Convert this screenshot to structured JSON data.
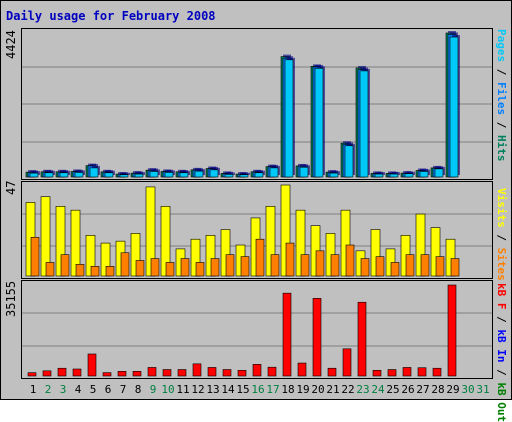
{
  "title": "Daily usage for February 2008",
  "colors": {
    "pages": "#00c8f8",
    "files": "#0080ff",
    "hits": "#00805c",
    "visits": "#ffff00",
    "sites": "#ff8000",
    "kbin": "#0000ff",
    "kbout": "#008000",
    "kbf": "#ff0000",
    "weekday": "#000000",
    "weekend": "#008040",
    "background": "#c0c0c0",
    "grid": "#808080"
  },
  "legends": {
    "hits_panel": [
      {
        "text": "Pages",
        "color": "#00c8f8"
      },
      {
        "text": " / ",
        "color": "#000000"
      },
      {
        "text": "Files",
        "color": "#0080ff"
      },
      {
        "text": " / ",
        "color": "#000000"
      },
      {
        "text": "Hits",
        "color": "#00805c"
      }
    ],
    "visits_panel": [
      {
        "text": "Visits",
        "color": "#ffff00"
      },
      {
        "text": " / ",
        "color": "#000000"
      },
      {
        "text": "Sites",
        "color": "#ff8000"
      }
    ],
    "kb_panel": [
      {
        "text": "kB F",
        "color": "#ff0000"
      },
      {
        "text": " / ",
        "color": "#000000"
      },
      {
        "text": "kB In",
        "color": "#0000ff"
      },
      {
        "text": " / ",
        "color": "#000000"
      },
      {
        "text": "kB Out",
        "color": "#008000"
      }
    ]
  },
  "chart_data": [
    {
      "type": "bar",
      "panel": "hits",
      "ymax_label": "4424",
      "ylim": [
        0,
        4424
      ],
      "grid": true,
      "categories": [
        "1",
        "2",
        "3",
        "4",
        "5",
        "6",
        "7",
        "8",
        "9",
        "10",
        "11",
        "12",
        "13",
        "14",
        "15",
        "16",
        "17",
        "18",
        "19",
        "20",
        "21",
        "22",
        "23",
        "24",
        "25",
        "26",
        "27",
        "28",
        "29",
        "30",
        "31"
      ],
      "series": [
        {
          "name": "Hits",
          "values": [
            150,
            160,
            160,
            170,
            350,
            160,
            90,
            120,
            210,
            170,
            160,
            220,
            260,
            110,
            90,
            160,
            320,
            3700,
            340,
            3400,
            150,
            1040,
            3350,
            110,
            110,
            120,
            200,
            280,
            4424,
            0,
            0
          ]
        },
        {
          "name": "Files",
          "values": [
            140,
            150,
            150,
            160,
            340,
            150,
            85,
            110,
            200,
            160,
            150,
            210,
            250,
            100,
            85,
            150,
            310,
            3650,
            330,
            3380,
            140,
            1000,
            3300,
            100,
            100,
            110,
            190,
            270,
            4380,
            0,
            0
          ]
        },
        {
          "name": "Pages",
          "values": [
            120,
            130,
            130,
            140,
            280,
            130,
            70,
            90,
            170,
            140,
            130,
            180,
            220,
            80,
            70,
            130,
            280,
            3600,
            300,
            3340,
            120,
            960,
            3260,
            90,
            90,
            100,
            170,
            250,
            4300,
            0,
            0
          ]
        }
      ]
    },
    {
      "type": "bar",
      "panel": "visits",
      "ymax_label": "47",
      "ylim": [
        0,
        47
      ],
      "grid": true,
      "categories": [
        "1",
        "2",
        "3",
        "4",
        "5",
        "6",
        "7",
        "8",
        "9",
        "10",
        "11",
        "12",
        "13",
        "14",
        "15",
        "16",
        "17",
        "18",
        "19",
        "20",
        "21",
        "22",
        "23",
        "24",
        "25",
        "26",
        "27",
        "28",
        "29",
        "30",
        "31"
      ],
      "series": [
        {
          "name": "Visits",
          "values": [
            38,
            41,
            36,
            34,
            21,
            17,
            18,
            22,
            46,
            36,
            14,
            19,
            21,
            24,
            16,
            30,
            36,
            47,
            34,
            26,
            22,
            34,
            13,
            24,
            14,
            21,
            32,
            25,
            19,
            0,
            0
          ]
        },
        {
          "name": "Sites",
          "values": [
            20,
            7,
            11,
            6,
            5,
            5,
            12,
            8,
            9,
            7,
            9,
            7,
            9,
            11,
            10,
            19,
            11,
            17,
            11,
            13,
            11,
            16,
            9,
            10,
            7,
            11,
            11,
            10,
            9,
            0,
            0
          ]
        }
      ]
    },
    {
      "type": "bar",
      "panel": "kbytes",
      "ymax_label": "35155",
      "ylim": [
        0,
        35155
      ],
      "grid": true,
      "categories": [
        "1",
        "2",
        "3",
        "4",
        "5",
        "6",
        "7",
        "8",
        "9",
        "10",
        "11",
        "12",
        "13",
        "14",
        "15",
        "16",
        "17",
        "18",
        "19",
        "20",
        "21",
        "22",
        "23",
        "24",
        "25",
        "26",
        "27",
        "28",
        "29",
        "30",
        "31"
      ],
      "series": [
        {
          "name": "kB F",
          "values": [
            1300,
            2000,
            3000,
            2700,
            8500,
            1300,
            1800,
            1800,
            3300,
            2500,
            2500,
            4700,
            3300,
            2500,
            2200,
            4500,
            3400,
            32000,
            5000,
            30000,
            3000,
            10500,
            28500,
            2200,
            2500,
            3300,
            3200,
            3000,
            35155,
            0,
            0
          ]
        }
      ]
    }
  ],
  "days": [
    {
      "label": "1",
      "weekend": false
    },
    {
      "label": "2",
      "weekend": true
    },
    {
      "label": "3",
      "weekend": true
    },
    {
      "label": "4",
      "weekend": false
    },
    {
      "label": "5",
      "weekend": false
    },
    {
      "label": "6",
      "weekend": false
    },
    {
      "label": "7",
      "weekend": false
    },
    {
      "label": "8",
      "weekend": false
    },
    {
      "label": "9",
      "weekend": true
    },
    {
      "label": "10",
      "weekend": true
    },
    {
      "label": "11",
      "weekend": false
    },
    {
      "label": "12",
      "weekend": false
    },
    {
      "label": "13",
      "weekend": false
    },
    {
      "label": "14",
      "weekend": false
    },
    {
      "label": "15",
      "weekend": false
    },
    {
      "label": "16",
      "weekend": true
    },
    {
      "label": "17",
      "weekend": true
    },
    {
      "label": "18",
      "weekend": false
    },
    {
      "label": "19",
      "weekend": false
    },
    {
      "label": "20",
      "weekend": false
    },
    {
      "label": "21",
      "weekend": false
    },
    {
      "label": "22",
      "weekend": false
    },
    {
      "label": "23",
      "weekend": true
    },
    {
      "label": "24",
      "weekend": true
    },
    {
      "label": "25",
      "weekend": false
    },
    {
      "label": "26",
      "weekend": false
    },
    {
      "label": "27",
      "weekend": false
    },
    {
      "label": "28",
      "weekend": false
    },
    {
      "label": "29",
      "weekend": false
    },
    {
      "label": "30",
      "weekend": true
    },
    {
      "label": "31",
      "weekend": true
    }
  ]
}
